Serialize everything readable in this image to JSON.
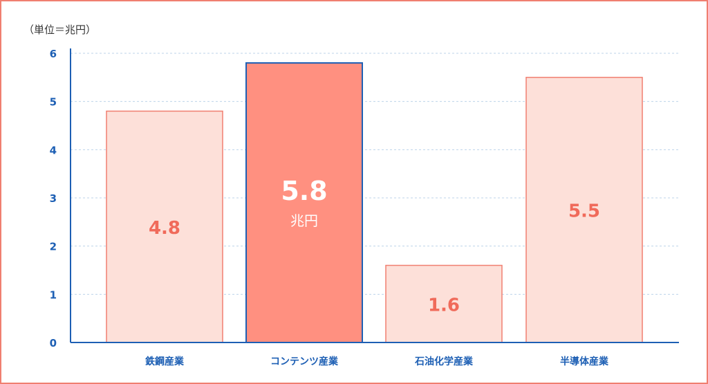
{
  "chart_data": {
    "type": "bar",
    "unit_note": "（単位＝兆円）",
    "categories": [
      "鉄鋼産業",
      "コンテンツ産業",
      "石油化学産業",
      "半導体産業"
    ],
    "values": [
      4.8,
      5.8,
      1.6,
      5.5
    ],
    "value_labels": [
      "4.8",
      "5.8",
      "1.6",
      "5.5"
    ],
    "highlight_index": 1,
    "highlight_unit": "兆円",
    "ylim": [
      0,
      6
    ],
    "yticks": [
      "0",
      "1",
      "2",
      "3",
      "4",
      "5",
      "6"
    ],
    "grid": true,
    "colors": {
      "bar_fill": "#fde0d9",
      "bar_stroke": "#f07f70",
      "highlight_fill": "#ff9080",
      "highlight_stroke": "#1d5fb4",
      "axis": "#1d5fb4",
      "grid": "#bcd3ea",
      "value_text": "#f06a5a",
      "highlight_text": "#ffffff"
    }
  }
}
